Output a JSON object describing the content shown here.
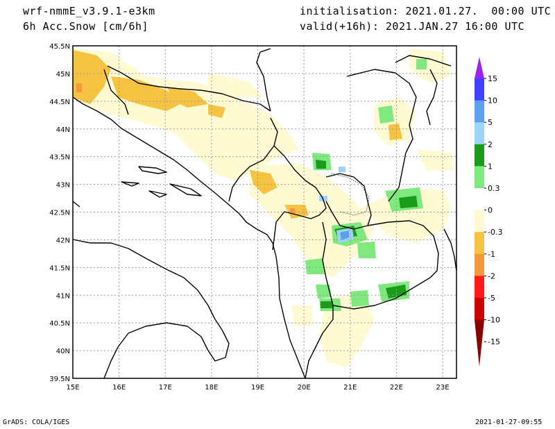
{
  "header": {
    "model": "wrf-nmmE_v3.9.1-e3km",
    "field": "6h Acc.Snow [cm/6h]",
    "init": "initialisation: 2021.01.27.  00:00 UTC",
    "valid": "valid(+16h): 2021.JAN.27 16:00 UTC"
  },
  "footer": {
    "left": "GrADS: COLA/IGES",
    "right": "2021-01-27-09:55"
  },
  "map": {
    "lon_min": 15,
    "lon_max": 23.3,
    "lat_min": 39.5,
    "lat_max": 45.5,
    "lon_ticks": [
      "15E",
      "16E",
      "17E",
      "18E",
      "19E",
      "20E",
      "21E",
      "22E",
      "23E"
    ],
    "lat_ticks": [
      "39.5N",
      "40N",
      "40.5N",
      "41N",
      "41.5N",
      "42N",
      "42.5N",
      "43N",
      "43.5N",
      "44N",
      "44.5N",
      "45N",
      "45.5N"
    ]
  },
  "legend": {
    "labels": [
      "15",
      "10",
      "5",
      "2",
      "1",
      "0.3",
      "0",
      "-0.3",
      "-1",
      "-2",
      "-5",
      "-10",
      "-15"
    ],
    "colors": [
      "#a020f0",
      "#4040ff",
      "#5aa0f0",
      "#9fd3f7",
      "#1a9c1a",
      "#7fe87f",
      "#ffffff",
      "#fffad2",
      "#f5c242",
      "#f59a3c",
      "#ff1a1a",
      "#cc0000",
      "#8b0000"
    ]
  }
}
